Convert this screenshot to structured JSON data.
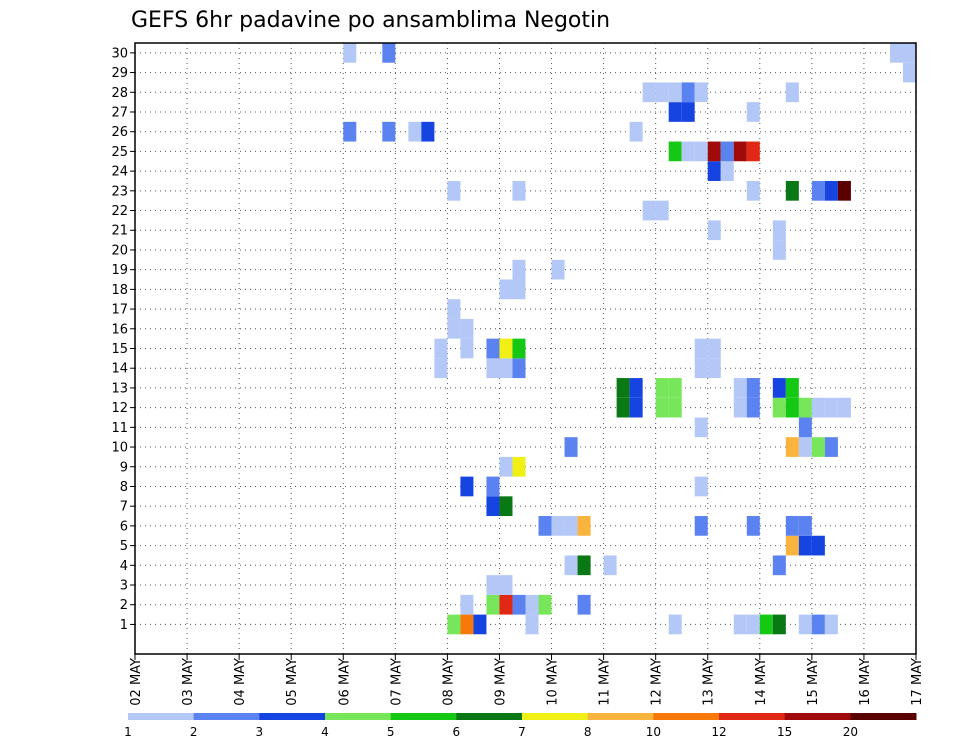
{
  "chart_data": {
    "type": "heatmap",
    "title": "GEFS 6hr padavine po ansamblima Negotin",
    "x_tick_labels": [
      "02 MAY",
      "03 MAY",
      "04 MAY",
      "05 MAY",
      "06 MAY",
      "07 MAY",
      "08 MAY",
      "09 MAY",
      "10 MAY",
      "11 MAY",
      "12 MAY",
      "13 MAY",
      "14 MAY",
      "15 MAY",
      "16 MAY",
      "17 MAY"
    ],
    "y_tick_labels": [
      "1",
      "2",
      "3",
      "4",
      "5",
      "6",
      "7",
      "8",
      "9",
      "10",
      "11",
      "12",
      "13",
      "14",
      "15",
      "16",
      "17",
      "18",
      "19",
      "20",
      "21",
      "22",
      "23",
      "24",
      "25",
      "26",
      "27",
      "28",
      "29",
      "30"
    ],
    "ensemble_members": 30,
    "time_step_hours": 6,
    "steps_per_day": 4,
    "xlim_steps": [
      0,
      60
    ],
    "ylim_members": [
      0,
      30
    ],
    "grid": true,
    "colorbar": {
      "levels": [
        "1",
        "2",
        "3",
        "4",
        "5",
        "6",
        "7",
        "8",
        "10",
        "12",
        "15",
        "20"
      ],
      "colors": [
        "#b4c8f8",
        "#5a82f0",
        "#1644e0",
        "#78e65a",
        "#14c814",
        "#0a7814",
        "#f0f014",
        "#f8b43c",
        "#f8780a",
        "#e02814",
        "#a00a0a",
        "#5a0000"
      ]
    },
    "cells": [
      {
        "m": 1,
        "t": 46,
        "c": 0
      },
      {
        "m": 1,
        "t": 47,
        "c": 0
      },
      {
        "m": 1,
        "t": 48,
        "c": 4
      },
      {
        "m": 1,
        "t": 49,
        "c": 5
      },
      {
        "m": 1,
        "t": 51,
        "c": 0
      },
      {
        "m": 1,
        "t": 52,
        "c": 1
      },
      {
        "m": 1,
        "t": 53,
        "c": 0
      },
      {
        "m": 1,
        "t": 41,
        "c": 0
      },
      {
        "m": 1,
        "t": 24,
        "c": 3
      },
      {
        "m": 1,
        "t": 25,
        "c": 8
      },
      {
        "m": 1,
        "t": 26,
        "c": 2
      },
      {
        "m": 1,
        "t": 30,
        "c": 0
      },
      {
        "m": 2,
        "t": 25,
        "c": 0
      },
      {
        "m": 2,
        "t": 27,
        "c": 3
      },
      {
        "m": 2,
        "t": 28,
        "c": 9
      },
      {
        "m": 2,
        "t": 29,
        "c": 1
      },
      {
        "m": 2,
        "t": 30,
        "c": 0
      },
      {
        "m": 2,
        "t": 31,
        "c": 3
      },
      {
        "m": 2,
        "t": 34,
        "c": 1
      },
      {
        "m": 3,
        "t": 27,
        "c": 0
      },
      {
        "m": 3,
        "t": 28,
        "c": 0
      },
      {
        "m": 4,
        "t": 33,
        "c": 0
      },
      {
        "m": 4,
        "t": 34,
        "c": 5
      },
      {
        "m": 4,
        "t": 36,
        "c": 0
      },
      {
        "m": 4,
        "t": 49,
        "c": 1
      },
      {
        "m": 5,
        "t": 50,
        "c": 7
      },
      {
        "m": 5,
        "t": 51,
        "c": 2
      },
      {
        "m": 5,
        "t": 52,
        "c": 2
      },
      {
        "m": 6,
        "t": 31,
        "c": 1
      },
      {
        "m": 6,
        "t": 32,
        "c": 0
      },
      {
        "m": 6,
        "t": 33,
        "c": 0
      },
      {
        "m": 6,
        "t": 34,
        "c": 7
      },
      {
        "m": 6,
        "t": 43,
        "c": 1
      },
      {
        "m": 6,
        "t": 47,
        "c": 1
      },
      {
        "m": 6,
        "t": 50,
        "c": 1
      },
      {
        "m": 6,
        "t": 51,
        "c": 1
      },
      {
        "m": 7,
        "t": 27,
        "c": 2
      },
      {
        "m": 7,
        "t": 28,
        "c": 5
      },
      {
        "m": 8,
        "t": 25,
        "c": 2
      },
      {
        "m": 8,
        "t": 27,
        "c": 1
      },
      {
        "m": 8,
        "t": 43,
        "c": 0
      },
      {
        "m": 9,
        "t": 28,
        "c": 0
      },
      {
        "m": 9,
        "t": 29,
        "c": 6
      },
      {
        "m": 10,
        "t": 33,
        "c": 1
      },
      {
        "m": 10,
        "t": 50,
        "c": 7
      },
      {
        "m": 10,
        "t": 51,
        "c": 0
      },
      {
        "m": 10,
        "t": 52,
        "c": 3
      },
      {
        "m": 10,
        "t": 53,
        "c": 1
      },
      {
        "m": 11,
        "t": 43,
        "c": 0
      },
      {
        "m": 11,
        "t": 51,
        "c": 1
      },
      {
        "m": 12,
        "t": 37,
        "c": 5
      },
      {
        "m": 12,
        "t": 38,
        "c": 2
      },
      {
        "m": 12,
        "t": 40,
        "c": 3
      },
      {
        "m": 12,
        "t": 41,
        "c": 3
      },
      {
        "m": 12,
        "t": 46,
        "c": 0
      },
      {
        "m": 12,
        "t": 47,
        "c": 1
      },
      {
        "m": 12,
        "t": 51,
        "c": 3
      },
      {
        "m": 12,
        "t": 52,
        "c": 0
      },
      {
        "m": 12,
        "t": 49,
        "c": 3
      },
      {
        "m": 12,
        "t": 50,
        "c": 4
      },
      {
        "m": 12,
        "t": 53,
        "c": 0
      },
      {
        "m": 12,
        "t": 54,
        "c": 0
      },
      {
        "m": 13,
        "t": 37,
        "c": 5
      },
      {
        "m": 13,
        "t": 38,
        "c": 2
      },
      {
        "m": 13,
        "t": 40,
        "c": 3
      },
      {
        "m": 13,
        "t": 41,
        "c": 3
      },
      {
        "m": 13,
        "t": 46,
        "c": 0
      },
      {
        "m": 13,
        "t": 47,
        "c": 1
      },
      {
        "m": 13,
        "t": 49,
        "c": 2
      },
      {
        "m": 13,
        "t": 50,
        "c": 4
      },
      {
        "m": 14,
        "t": 23,
        "c": 0
      },
      {
        "m": 14,
        "t": 27,
        "c": 0
      },
      {
        "m": 14,
        "t": 28,
        "c": 0
      },
      {
        "m": 14,
        "t": 29,
        "c": 1
      },
      {
        "m": 14,
        "t": 43,
        "c": 0
      },
      {
        "m": 14,
        "t": 44,
        "c": 0
      },
      {
        "m": 15,
        "t": 23,
        "c": 0
      },
      {
        "m": 15,
        "t": 25,
        "c": 0
      },
      {
        "m": 15,
        "t": 27,
        "c": 1
      },
      {
        "m": 15,
        "t": 28,
        "c": 6
      },
      {
        "m": 15,
        "t": 29,
        "c": 4
      },
      {
        "m": 15,
        "t": 43,
        "c": 0
      },
      {
        "m": 15,
        "t": 44,
        "c": 0
      },
      {
        "m": 16,
        "t": 24,
        "c": 0
      },
      {
        "m": 16,
        "t": 25,
        "c": 0
      },
      {
        "m": 17,
        "t": 24,
        "c": 0
      },
      {
        "m": 18,
        "t": 28,
        "c": 0
      },
      {
        "m": 18,
        "t": 29,
        "c": 0
      },
      {
        "m": 19,
        "t": 29,
        "c": 0
      },
      {
        "m": 19,
        "t": 32,
        "c": 0
      },
      {
        "m": 20,
        "t": 49,
        "c": 0
      },
      {
        "m": 21,
        "t": 44,
        "c": 0
      },
      {
        "m": 21,
        "t": 49,
        "c": 0
      },
      {
        "m": 22,
        "t": 39,
        "c": 0
      },
      {
        "m": 22,
        "t": 40,
        "c": 0
      },
      {
        "m": 23,
        "t": 24,
        "c": 0
      },
      {
        "m": 23,
        "t": 29,
        "c": 0
      },
      {
        "m": 23,
        "t": 47,
        "c": 0
      },
      {
        "m": 23,
        "t": 50,
        "c": 5
      },
      {
        "m": 23,
        "t": 52,
        "c": 1
      },
      {
        "m": 23,
        "t": 53,
        "c": 2
      },
      {
        "m": 23,
        "t": 54,
        "c": 11
      },
      {
        "m": 24,
        "t": 44,
        "c": 2
      },
      {
        "m": 24,
        "t": 45,
        "c": 0
      },
      {
        "m": 25,
        "t": 41,
        "c": 4
      },
      {
        "m": 25,
        "t": 42,
        "c": 0
      },
      {
        "m": 25,
        "t": 43,
        "c": 0
      },
      {
        "m": 25,
        "t": 44,
        "c": 10
      },
      {
        "m": 25,
        "t": 45,
        "c": 1
      },
      {
        "m": 25,
        "t": 46,
        "c": 10
      },
      {
        "m": 25,
        "t": 47,
        "c": 9
      },
      {
        "m": 26,
        "t": 16,
        "c": 1
      },
      {
        "m": 26,
        "t": 19,
        "c": 1
      },
      {
        "m": 26,
        "t": 21,
        "c": 0
      },
      {
        "m": 26,
        "t": 22,
        "c": 2
      },
      {
        "m": 26,
        "t": 38,
        "c": 0
      },
      {
        "m": 27,
        "t": 41,
        "c": 2
      },
      {
        "m": 27,
        "t": 42,
        "c": 2
      },
      {
        "m": 27,
        "t": 47,
        "c": 0
      },
      {
        "m": 28,
        "t": 39,
        "c": 0
      },
      {
        "m": 28,
        "t": 40,
        "c": 0
      },
      {
        "m": 28,
        "t": 41,
        "c": 0
      },
      {
        "m": 28,
        "t": 42,
        "c": 1
      },
      {
        "m": 28,
        "t": 43,
        "c": 0
      },
      {
        "m": 28,
        "t": 50,
        "c": 0
      },
      {
        "m": 29,
        "t": 59,
        "c": 0
      },
      {
        "m": 30,
        "t": 16,
        "c": 0
      },
      {
        "m": 30,
        "t": 19,
        "c": 1
      },
      {
        "m": 30,
        "t": 58,
        "c": 0
      },
      {
        "m": 30,
        "t": 59,
        "c": 0
      }
    ]
  }
}
